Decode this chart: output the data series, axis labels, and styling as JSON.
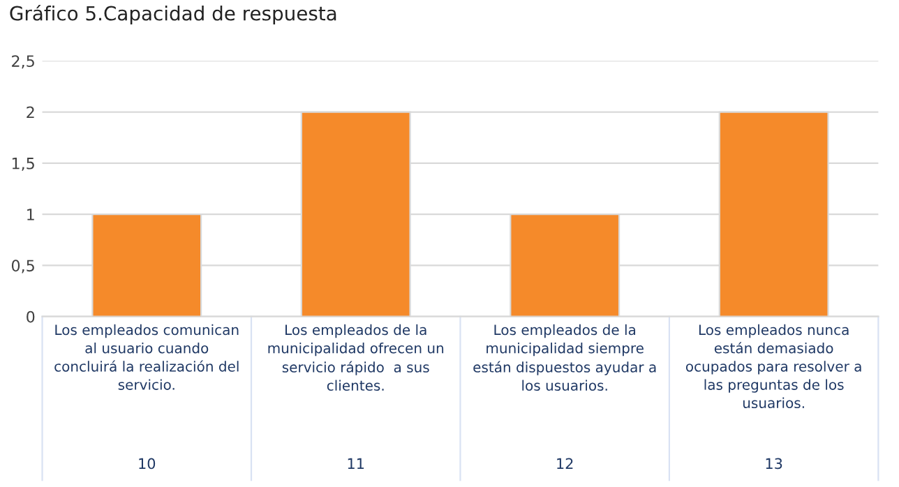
{
  "chart_data": {
    "type": "bar",
    "title": "Gráfico 5.Capacidad de respuesta",
    "categories": [
      "Los empleados comunican\nal usuario cuando\nconcluirá la realización del\nservicio.",
      "Los empleados de la\nmunicipalidad ofrecen un\nservicio rápido  a sus\nclientes.",
      "Los empleados de la\nmunicipalidad siempre\nestán dispuestos ayudar a\nlos usuarios.",
      "Los empleados nunca\nestán demasiado\nocupados para resolver a\nlas preguntas de los\nusuarios."
    ],
    "annotations": [
      "10",
      "11",
      "12",
      "13"
    ],
    "values": [
      1,
      2,
      1,
      2
    ],
    "color": "#f58a2a",
    "ylim": [
      0,
      2.5
    ],
    "yticks": [
      0,
      {
        "value": 0.5,
        "label": "0,5"
      },
      1,
      {
        "value": 1.5,
        "label": "1,5"
      },
      2,
      {
        "value": 2.5,
        "label": "2,5"
      }
    ],
    "grid": "y",
    "legend": false
  }
}
